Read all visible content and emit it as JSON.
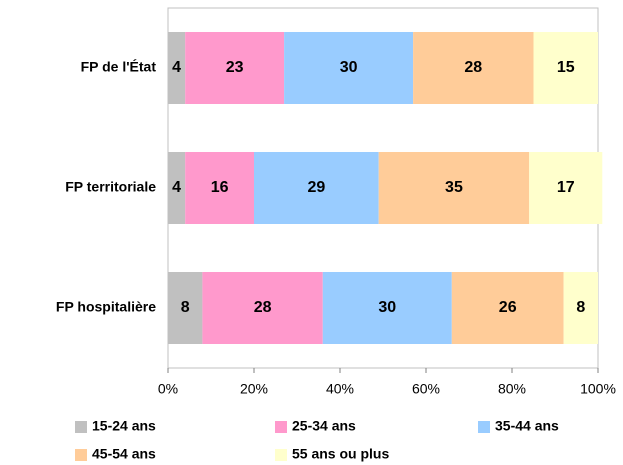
{
  "chart_data": {
    "type": "stacked_barh",
    "categories": [
      "FP de l'État",
      "FP territoriale",
      "FP hospitalière"
    ],
    "series": [
      {
        "name": "15-24 ans",
        "color": "#c0c0c0",
        "values": [
          4,
          4,
          8
        ]
      },
      {
        "name": "25-34 ans",
        "color": "#ff99cc",
        "values": [
          23,
          16,
          28
        ]
      },
      {
        "name": "35-44 ans",
        "color": "#99ccff",
        "values": [
          30,
          29,
          30
        ]
      },
      {
        "name": "45-54 ans",
        "color": "#ffcc99",
        "values": [
          28,
          35,
          26
        ]
      },
      {
        "name": "55 ans ou plus",
        "color": "#ffffcc",
        "values": [
          15,
          17,
          8
        ]
      }
    ],
    "xlim": [
      0,
      100
    ],
    "xticks": [
      {
        "value": 0,
        "label": "0%"
      },
      {
        "value": 20,
        "label": "20%"
      },
      {
        "value": 40,
        "label": "40%"
      },
      {
        "value": 60,
        "label": "60%"
      },
      {
        "value": 80,
        "label": "80%"
      },
      {
        "value": 100,
        "label": "100%"
      }
    ],
    "legend": "bottom"
  }
}
